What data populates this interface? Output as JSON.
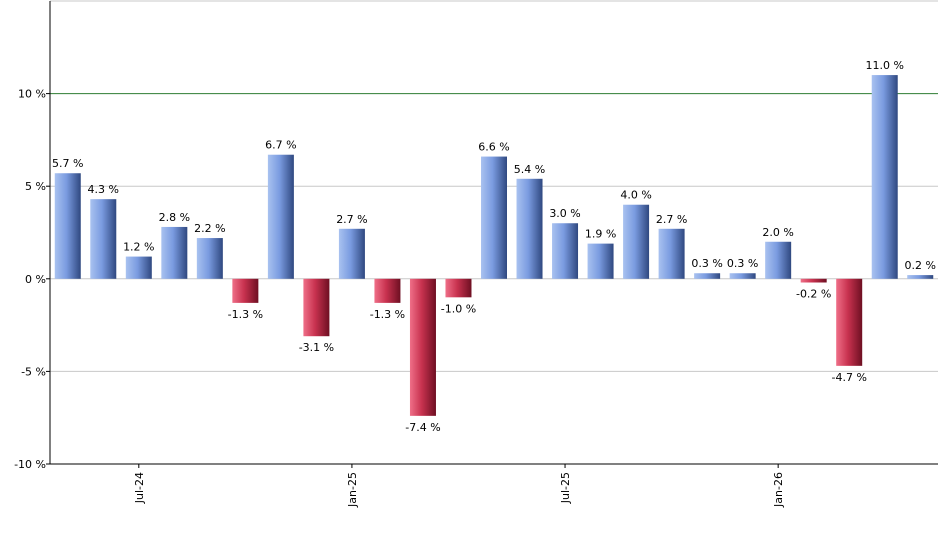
{
  "chart_data": {
    "type": "bar",
    "title": "",
    "xlabel": "",
    "ylabel": "",
    "ylim": [
      -10,
      15
    ],
    "grid": true,
    "y_ticks": [
      10,
      5,
      0,
      -5,
      -10
    ],
    "y_tick_labels": [
      "10 %",
      "5 %",
      "0 %",
      "-5 %",
      "-10 %"
    ],
    "reference_line": 10,
    "x_ticks": [
      {
        "index": 2,
        "label": "Jul-24"
      },
      {
        "index": 8,
        "label": "Jan-25"
      },
      {
        "index": 14,
        "label": "Jul-25"
      },
      {
        "index": 20,
        "label": "Jan-26"
      }
    ],
    "values": [
      5.7,
      4.3,
      1.2,
      2.8,
      2.2,
      -1.3,
      6.7,
      -3.1,
      2.7,
      -1.3,
      -7.4,
      -1.0,
      6.6,
      5.4,
      3.0,
      1.9,
      4.0,
      2.7,
      0.3,
      0.3,
      2.0,
      -0.2,
      -4.7,
      11.0,
      0.2
    ],
    "labels": [
      "5.7 %",
      "4.3 %",
      "1.2 %",
      "2.8 %",
      "2.2 %",
      "-1.3 %",
      "6.7 %",
      "-3.1 %",
      "2.7 %",
      "-1.3 %",
      "-7.4 %",
      "-1.0 %",
      "6.6 %",
      "5.4 %",
      "3.0 %",
      "1.9 %",
      "4.0 %",
      "2.7 %",
      "0.3 %",
      "0.3 %",
      "2.0 %",
      "-0.2 %",
      "-4.7 %",
      "11.0 %",
      "0.2 %"
    ],
    "colors": {
      "positive": "#7a9be0",
      "negative": "#c8324f",
      "reference_line": "#2e7d32",
      "grid": "#c8c8c8",
      "axis": "#000000"
    }
  }
}
